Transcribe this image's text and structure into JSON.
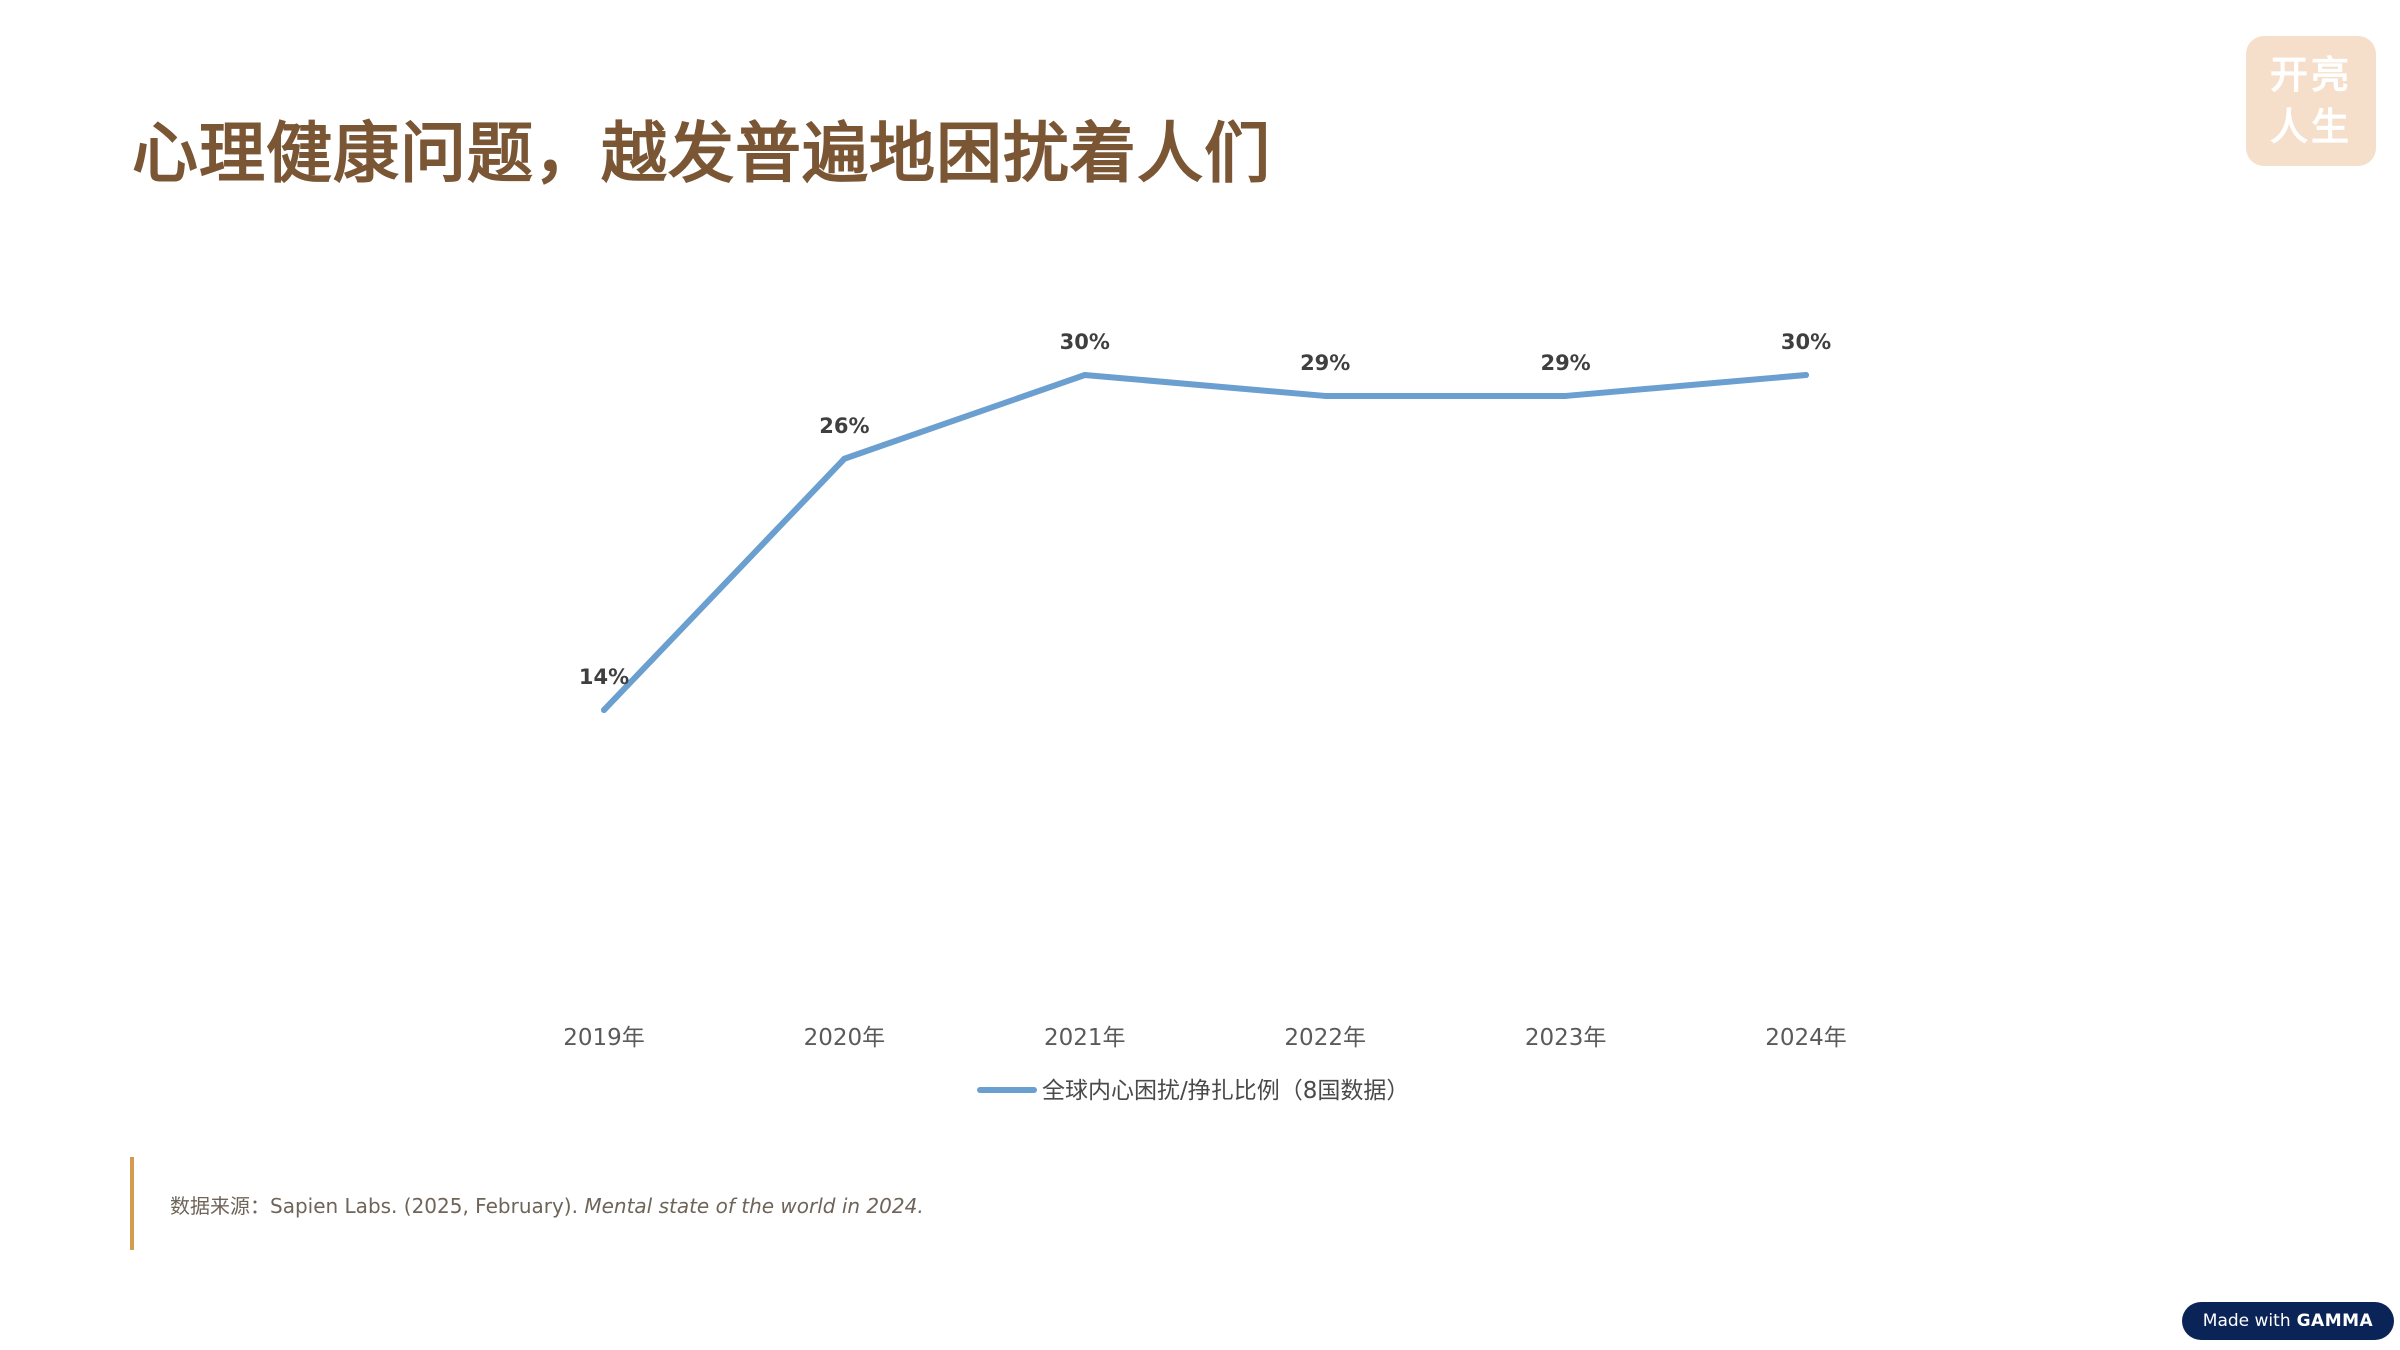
{
  "header": {
    "title": "心理健康问题，越发普遍地困扰着人们"
  },
  "logo": {
    "line1": "开亮",
    "line2": "人生"
  },
  "chart_data": {
    "type": "line",
    "categories": [
      "2019年",
      "2020年",
      "2021年",
      "2022年",
      "2023年",
      "2024年"
    ],
    "series": [
      {
        "name": "全球内心困扰/挣扎比例（8国数据）",
        "values": [
          14,
          26,
          30,
          29,
          29,
          30
        ],
        "data_labels": [
          "14%",
          "26%",
          "30%",
          "29%",
          "29%",
          "30%"
        ],
        "color": "#6a9fd0"
      }
    ],
    "title": "",
    "xlabel": "",
    "ylabel": "",
    "ylim": [
      0,
      30
    ],
    "grid": false,
    "legend_position": "bottom"
  },
  "source": {
    "prefix": "数据来源：Sapien Labs. (2025, February). ",
    "title_italic": "Mental state of the world in 2024."
  },
  "badge": {
    "made_with": "Made with",
    "brand": "GAMMA"
  }
}
